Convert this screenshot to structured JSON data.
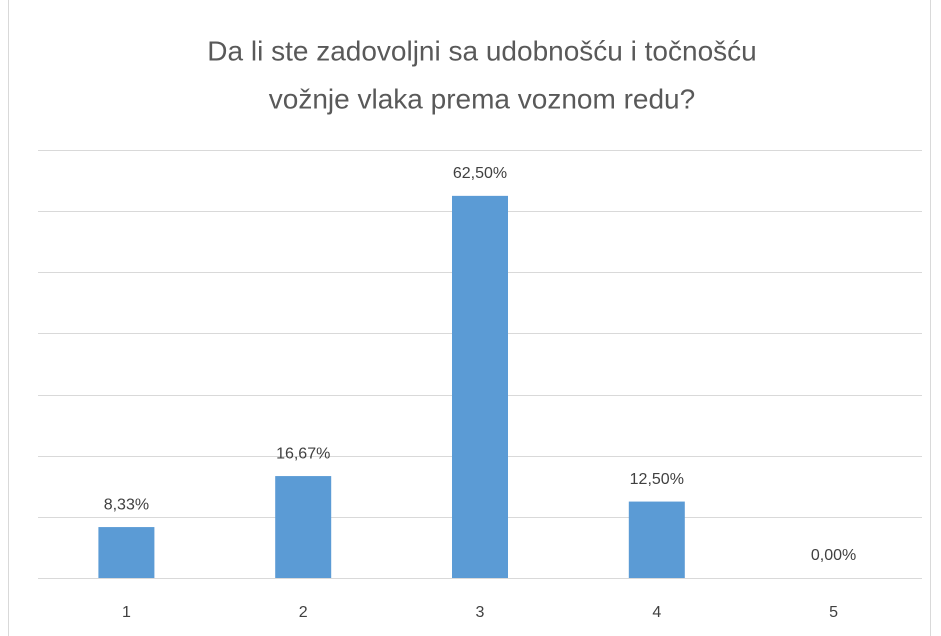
{
  "chart_data": {
    "type": "bar",
    "title": [
      "Da li ste zadovoljni sa udobnošću i točnošću",
      "vožnje vlaka prema voznom redu?"
    ],
    "categories": [
      "1",
      "2",
      "3",
      "4",
      "5"
    ],
    "values": [
      8.33,
      16.67,
      62.5,
      12.5,
      0
    ],
    "value_labels": [
      "8,33%",
      "16,67%",
      "62,50%",
      "12,50%",
      "0,00%"
    ],
    "color": "#5b9bd5",
    "ylim": [
      0,
      70
    ],
    "yticks": [
      0,
      10,
      20,
      30,
      40,
      50,
      60,
      70
    ],
    "grid": true
  }
}
